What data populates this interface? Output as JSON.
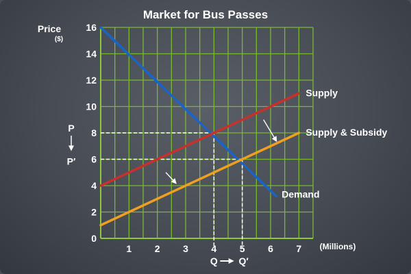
{
  "chart_data": {
    "type": "line",
    "title": "Market for Bus Passes",
    "ylabel": "Price",
    "ylabel_unit": "($)",
    "xlabel": "(Millions)",
    "xlim": [
      0,
      7.5
    ],
    "ylim": [
      0,
      16
    ],
    "xticks": [
      "1",
      "2",
      "3",
      "4",
      "5",
      "6",
      "7"
    ],
    "yticks": [
      "0",
      "2",
      "4",
      "6",
      "8",
      "10",
      "12",
      "14",
      "16"
    ],
    "grid": true,
    "series": [
      {
        "name": "Demand",
        "color": "#1a64c8",
        "x": [
          0,
          6.2
        ],
        "y": [
          16,
          3.2
        ]
      },
      {
        "name": "Supply",
        "color": "#c8302e",
        "x": [
          0,
          7
        ],
        "y": [
          4,
          11
        ]
      },
      {
        "name": "Supply & Subsidy",
        "color": "#f0a020",
        "x": [
          0,
          7
        ],
        "y": [
          1,
          8
        ]
      }
    ],
    "equilibria": [
      {
        "x": 4,
        "y": 8,
        "price_label": "P",
        "quantity_label": "Q"
      },
      {
        "x": 5,
        "y": 6,
        "price_label": "P′",
        "quantity_label": "Q′"
      }
    ],
    "colors": {
      "grid": "#7ab832",
      "axis": "#8cc83c"
    }
  }
}
